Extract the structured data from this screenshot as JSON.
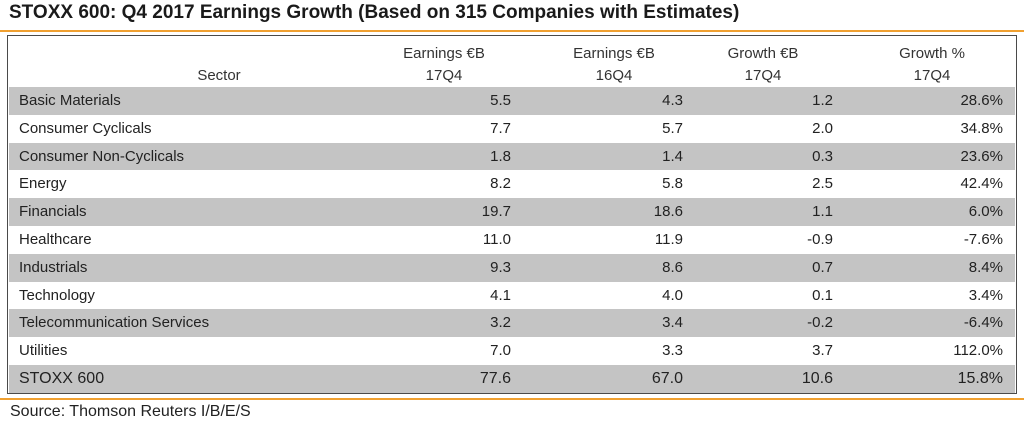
{
  "title": "STOXX 600: Q4 2017 Earnings Growth (Based on 315 Companies with Estimates)",
  "source": "Source: Thomson Reuters I/B/E/S",
  "colors": {
    "accent_rule": "#f0a030",
    "row_shade": "#c4c4c4"
  },
  "chart_data": {
    "type": "table",
    "columns": [
      {
        "key": "sector",
        "line1": "",
        "line2": "Sector"
      },
      {
        "key": "earn_17q4",
        "line1": "Earnings €B",
        "line2": "17Q4"
      },
      {
        "key": "earn_16q4",
        "line1": "Earnings €B",
        "line2": "16Q4"
      },
      {
        "key": "growth_eb",
        "line1": "Growth €B",
        "line2": "17Q4"
      },
      {
        "key": "growth_pct",
        "line1": "Growth %",
        "line2": "17Q4"
      }
    ],
    "rows": [
      [
        "Basic Materials",
        "5.5",
        "4.3",
        "1.2",
        "28.6%"
      ],
      [
        "Consumer Cyclicals",
        "7.7",
        "5.7",
        "2.0",
        "34.8%"
      ],
      [
        "Consumer Non-Cyclicals",
        "1.8",
        "1.4",
        "0.3",
        "23.6%"
      ],
      [
        "Energy",
        "8.2",
        "5.8",
        "2.5",
        "42.4%"
      ],
      [
        "Financials",
        "19.7",
        "18.6",
        "1.1",
        "6.0%"
      ],
      [
        "Healthcare",
        "11.0",
        "11.9",
        "-0.9",
        "-7.6%"
      ],
      [
        "Industrials",
        "9.3",
        "8.6",
        "0.7",
        "8.4%"
      ],
      [
        "Technology",
        "4.1",
        "4.0",
        "0.1",
        "3.4%"
      ],
      [
        "Telecommunication Services",
        "3.2",
        "3.4",
        "-0.2",
        "-6.4%"
      ],
      [
        "Utilities",
        "7.0",
        "3.3",
        "3.7",
        "112.0%"
      ]
    ],
    "total": [
      "STOXX 600",
      "77.6",
      "67.0",
      "10.6",
      "15.8%"
    ]
  }
}
